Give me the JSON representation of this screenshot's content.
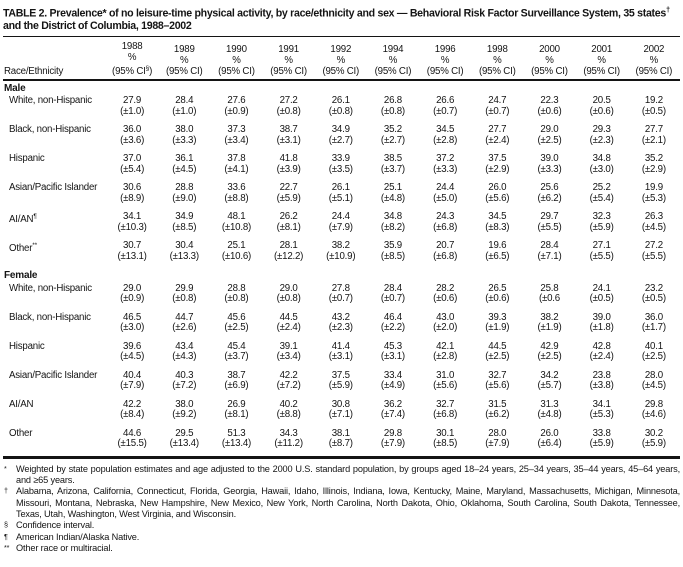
{
  "title": {
    "text1": "TABLE 2. Prevalence* of no leisure-time physical activity, by race/ethnicity and sex — Behavioral Risk Factor Surveillance System, 35 states",
    "sup1": "†",
    "text2": " and the District of Columbia, 1988–2002"
  },
  "table": {
    "race_col_label": "Race/Ethnicity",
    "columns": [
      {
        "year": "1988",
        "pct": "%",
        "ci_pre": "(95% CI",
        "ci_sup": "§",
        "ci_post": ")"
      },
      {
        "year": "1989",
        "pct": "%",
        "ci_pre": "(95% CI)",
        "ci_sup": "",
        "ci_post": ""
      },
      {
        "year": "1990",
        "pct": "%",
        "ci_pre": "(95% CI)",
        "ci_sup": "",
        "ci_post": ""
      },
      {
        "year": "1991",
        "pct": "%",
        "ci_pre": "(95% CI)",
        "ci_sup": "",
        "ci_post": ""
      },
      {
        "year": "1992",
        "pct": "%",
        "ci_pre": "(95% CI)",
        "ci_sup": "",
        "ci_post": ""
      },
      {
        "year": "1994",
        "pct": "%",
        "ci_pre": "(95% CI)",
        "ci_sup": "",
        "ci_post": ""
      },
      {
        "year": "1996",
        "pct": "%",
        "ci_pre": "(95% CI)",
        "ci_sup": "",
        "ci_post": ""
      },
      {
        "year": "1998",
        "pct": "%",
        "ci_pre": "(95% CI)",
        "ci_sup": "",
        "ci_post": ""
      },
      {
        "year": "2000",
        "pct": "%",
        "ci_pre": "(95% CI)",
        "ci_sup": "",
        "ci_post": ""
      },
      {
        "year": "2001",
        "pct": "%",
        "ci_pre": "(95% CI)",
        "ci_sup": "",
        "ci_post": ""
      },
      {
        "year": "2002",
        "pct": "%",
        "ci_pre": "(95% CI)",
        "ci_sup": "",
        "ci_post": ""
      }
    ],
    "sections": [
      {
        "label": "Male",
        "rows": [
          {
            "label": "White, non-Hispanic",
            "sup": "",
            "pct": [
              "27.9",
              "28.4",
              "27.6",
              "27.2",
              "26.1",
              "26.8",
              "26.6",
              "24.7",
              "22.3",
              "20.5",
              "19.2"
            ],
            "ci": [
              "(±1.0)",
              "(±1.0)",
              "(±0.9)",
              "(±0.8)",
              "(±0.8)",
              "(±0.8)",
              "(±0.7)",
              "(±0.7)",
              "(±0.6)",
              "(±0.6)",
              "(±0.5)"
            ]
          },
          {
            "label": "Black, non-Hispanic",
            "sup": "",
            "pct": [
              "36.0",
              "38.0",
              "37.3",
              "38.7",
              "34.9",
              "35.2",
              "34.5",
              "27.7",
              "29.0",
              "29.3",
              "27.7"
            ],
            "ci": [
              "(±3.6)",
              "(±3.3)",
              "(±3.4)",
              "(±3.1)",
              "(±2.7)",
              "(±2.7)",
              "(±2.8)",
              "(±2.4)",
              "(±2.5)",
              "(±2.3)",
              "(±2.1)"
            ]
          },
          {
            "label": "Hispanic",
            "sup": "",
            "pct": [
              "37.0",
              "36.1",
              "37.8",
              "41.8",
              "33.9",
              "38.5",
              "37.2",
              "37.5",
              "39.0",
              "34.8",
              "35.2"
            ],
            "ci": [
              "(±5.4)",
              "(±4.5)",
              "(±4.1)",
              "(±3.9)",
              "(±3.5)",
              "(±3.7)",
              "(±3.3)",
              "(±2.9)",
              "(±3.3)",
              "(±3.0)",
              "(±2.9)"
            ]
          },
          {
            "label": "Asian/Pacific Islander",
            "sup": "",
            "pct": [
              "30.6",
              "28.8",
              "33.6",
              "22.7",
              "26.1",
              "25.1",
              "24.4",
              "26.0",
              "25.6",
              "25.2",
              "19.9"
            ],
            "ci": [
              "(±8.9)",
              "(±9.0)",
              "(±8.8)",
              "(±5.9)",
              "(±5.1)",
              "(±4.8)",
              "(±5.0)",
              "(±5.6)",
              "(±6.2)",
              "(±5.4)",
              "(±5.3)"
            ]
          },
          {
            "label": "AI/AN",
            "sup": "¶",
            "pct": [
              "34.1",
              "34.9",
              "48.1",
              "26.2",
              "24.4",
              "34.8",
              "24.3",
              "34.5",
              "29.7",
              "32.3",
              "26.3"
            ],
            "ci": [
              "(±10.3)",
              "(±8.5)",
              "(±10.8)",
              "(±8.1)",
              "(±7.9)",
              "(±8.2)",
              "(±6.8)",
              "(±8.3)",
              "(±5.5)",
              "(±5.9)",
              "(±4.5)"
            ]
          },
          {
            "label": "Other",
            "sup": "**",
            "pct": [
              "30.7",
              "30.4",
              "25.1",
              "28.1",
              "38.2",
              "35.9",
              "20.7",
              "19.6",
              "28.4",
              "27.1",
              "27.2"
            ],
            "ci": [
              "(±13.1)",
              "(±13.3)",
              "(±10.6)",
              "(±12.2)",
              "(±10.9)",
              "(±8.5)",
              "(±6.8)",
              "(±6.5)",
              "(±7.1)",
              "(±5.5)",
              "(±5.5)"
            ]
          }
        ]
      },
      {
        "label": "Female",
        "rows": [
          {
            "label": "White, non-Hispanic",
            "sup": "",
            "pct": [
              "29.0",
              "29.9",
              "28.8",
              "29.0",
              "27.8",
              "28.4",
              "28.2",
              "26.5",
              "25.8",
              "24.1",
              "23.2"
            ],
            "ci": [
              "(±0.9)",
              "(±0.8)",
              "(±0.8)",
              "(±0.8)",
              "(±0.7)",
              "(±0.7)",
              "(±0.6)",
              "(±0.6)",
              "(±0.6",
              "(±0.5)",
              "(±0.5)"
            ]
          },
          {
            "label": "Black, non-Hispanic",
            "sup": "",
            "pct": [
              "46.5",
              "44.7",
              "45.6",
              "44.5",
              "43.2",
              "46.4",
              "43.0",
              "39.3",
              "38.2",
              "39.0",
              "36.0"
            ],
            "ci": [
              "(±3.0)",
              "(±2.6)",
              "(±2.5)",
              "(±2.4)",
              "(±2.3)",
              "(±2.2)",
              "(±2.0)",
              "(±1.9)",
              "(±1.9)",
              "(±1.8)",
              "(±1.7)"
            ]
          },
          {
            "label": "Hispanic",
            "sup": "",
            "pct": [
              "39.6",
              "43.4",
              "45.4",
              "39.1",
              "41.4",
              "45.3",
              "42.1",
              "44.5",
              "42.9",
              "42.8",
              "40.1"
            ],
            "ci": [
              "(±4.5)",
              "(±4.3)",
              "(±3.7)",
              "(±3.4)",
              "(±3.1)",
              "(±3.1)",
              "(±2.8)",
              "(±2.5)",
              "(±2.5)",
              "(±2.4)",
              "(±2.5)"
            ]
          },
          {
            "label": "Asian/Pacific Islander",
            "sup": "",
            "pct": [
              "40.4",
              "40.3",
              "38.7",
              "42.2",
              "37.5",
              "33.4",
              "31.0",
              "32.7",
              "34.2",
              "23.8",
              "28.0"
            ],
            "ci": [
              "(±7.9)",
              "(±7.2)",
              "(±6.9)",
              "(±7.2)",
              "(±5.9)",
              "(±4.9)",
              "(±5.6)",
              "(±5.6)",
              "(±5.7)",
              "(±3.8)",
              "(±4.5)"
            ]
          },
          {
            "label": "AI/AN",
            "sup": "",
            "pct": [
              "42.2",
              "38.0",
              "26.9",
              "40.2",
              "30.8",
              "36.2",
              "32.7",
              "31.5",
              "31.3",
              "34.1",
              "29.8"
            ],
            "ci": [
              "(±8.4)",
              "(±9.2)",
              "(±8.1)",
              "(±8.8)",
              "(±7.1)",
              "(±7.4)",
              "(±6.8)",
              "(±6.2)",
              "(±4.8)",
              "(±5.3)",
              "(±4.6)"
            ]
          },
          {
            "label": "Other",
            "sup": "",
            "pct": [
              "44.6",
              "29.5",
              "51.3",
              "34.3",
              "38.1",
              "29.8",
              "30.1",
              "28.0",
              "26.0",
              "33.8",
              "30.2"
            ],
            "ci": [
              "(±15.5)",
              "(±13.4)",
              "(±13.4)",
              "(±11.2)",
              "(±8.7)",
              "(±7.9)",
              "(±8.5)",
              "(±7.9)",
              "(±6.4)",
              "(±5.9)",
              "(±5.9)"
            ]
          }
        ]
      }
    ]
  },
  "footnotes": [
    {
      "marker": "*",
      "text": "Weighted by state population estimates and age adjusted to the 2000 U.S. standard population, by groups aged 18–24 years, 25–34 years, 35–44 years, 45–64 years, and ≥65 years."
    },
    {
      "marker": "†",
      "text": "Alabama, Arizona, California, Connecticut, Florida, Georgia, Hawaii, Idaho, Illinois, Indiana, Iowa, Kentucky, Maine, Maryland, Massachusetts, Michigan, Minnesota, Missouri, Montana, Nebraska, New Hampshire, New Mexico, New York, North Carolina, North Dakota, Ohio, Oklahoma, South Carolina, South Dakota, Tennessee, Texas, Utah, Washington, West Virginia, and Wisconsin."
    },
    {
      "marker": "§",
      "text": "Confidence interval."
    },
    {
      "marker": "¶",
      "text": "American Indian/Alaska Native."
    },
    {
      "marker": "**",
      "text": "Other race or multiracial."
    }
  ]
}
